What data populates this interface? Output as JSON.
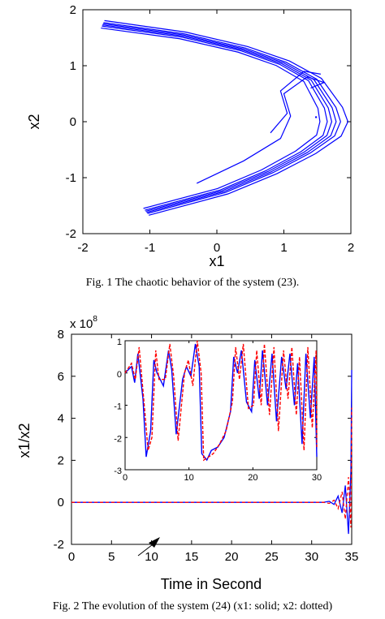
{
  "figure1": {
    "caption": "Fig. 1 The chaotic behavior of the system (23).",
    "chart_data": {
      "type": "scatter",
      "xlabel": "x1",
      "ylabel": "x2",
      "xlim": [
        -2,
        2
      ],
      "ylim": [
        -2,
        2
      ],
      "xticks": [
        "-2",
        "-1",
        "0",
        "1",
        "2"
      ],
      "yticks": [
        "-2",
        "-1",
        "0",
        "1",
        "2"
      ],
      "grid": false,
      "series_color": "#0000ff",
      "attractor_points": [
        [
          -1.7,
          1.75
        ],
        [
          -0.5,
          1.55
        ],
        [
          0.4,
          1.3
        ],
        [
          1.0,
          1.05
        ],
        [
          1.45,
          0.75
        ],
        [
          1.72,
          0.25
        ],
        [
          1.78,
          0.0
        ],
        [
          1.7,
          -0.25
        ],
        [
          1.35,
          -0.55
        ],
        [
          0.8,
          -0.9
        ],
        [
          0.1,
          -1.25
        ],
        [
          -1.05,
          -1.62
        ]
      ]
    }
  },
  "figure2": {
    "caption": "Fig. 2 The evolution of the system (24)  (x1: solid; x2: dotted)",
    "chart_data": {
      "type": "line",
      "xlabel": "Time in Second",
      "ylabel": "x1/x2",
      "xlim": [
        0,
        35
      ],
      "ylim": [
        -2,
        8
      ],
      "y_multiplier": "x 10",
      "y_exponent": "8",
      "xticks": [
        "0",
        "5",
        "10",
        "15",
        "20",
        "25",
        "30",
        "35"
      ],
      "yticks": [
        "-2",
        "0",
        "2",
        "4",
        "6",
        "8"
      ],
      "series": [
        {
          "style": "solid",
          "color": "#0000ff",
          "x": [
            0,
            31.5,
            32.2,
            32.8,
            33.3,
            33.8,
            34.2,
            34.6,
            34.9,
            35
          ],
          "y": [
            0,
            0,
            0.05,
            -0.1,
            0.3,
            -0.5,
            0.8,
            -1.5,
            1.5,
            6.3
          ]
        },
        {
          "style": "dotted",
          "color": "#ff0000",
          "x": [
            0,
            31.5,
            32.2,
            32.8,
            33.3,
            33.8,
            34.2,
            34.6,
            34.9,
            35
          ],
          "y": [
            0,
            0,
            -0.05,
            0.1,
            -0.3,
            0.5,
            -0.8,
            1.2,
            -1.2,
            4.5
          ]
        }
      ],
      "inset": {
        "xlim": [
          0,
          30
        ],
        "ylim": [
          -3,
          1
        ],
        "xticks": [
          "0",
          "10",
          "20",
          "30"
        ],
        "yticks": [
          "-3",
          "-2",
          "-1",
          "0",
          "1"
        ],
        "series": [
          {
            "style": "solid",
            "color": "#0000ff",
            "x": [
              0,
              1,
              1.5,
              2,
              2.8,
              3.3,
              4,
              4.5,
              5,
              6,
              6.8,
              7.3,
              8,
              9,
              9.6,
              10.3,
              11,
              11.6,
              12,
              12.8,
              13.5,
              14.5,
              15.5,
              16.5,
              17,
              17.6,
              18.2,
              19,
              19.8,
              20.3,
              21,
              21.5,
              22.3,
              23,
              23.7,
              24.5,
              25.2,
              25.8,
              26.5,
              27,
              27.7,
              28.3,
              29,
              29.6,
              30
            ],
            "y": [
              0,
              0.2,
              -0.3,
              0.6,
              -0.8,
              -2.6,
              -1.8,
              0.4,
              0,
              -0.4,
              0.7,
              0.1,
              -1.9,
              -0.2,
              0.2,
              -0.1,
              0.9,
              0.2,
              -2.5,
              -2.7,
              -2.4,
              -2.3,
              -2.0,
              -1.2,
              0.5,
              0.0,
              0.7,
              -0.9,
              -1.2,
              0.4,
              -0.8,
              0.7,
              -1.0,
              0.6,
              -1.5,
              0.5,
              -0.5,
              0.6,
              -1.0,
              0.3,
              -2.2,
              0.6,
              -1.4,
              0.5,
              -2.6
            ]
          },
          {
            "style": "dotted",
            "color": "#ff0000",
            "x": [
              0,
              1,
              1.6,
              2.2,
              3,
              3.6,
              4.2,
              4.8,
              5.3,
              6.3,
              7,
              7.6,
              8.3,
              9.3,
              9.9,
              10.6,
              11.3,
              11.9,
              12.3,
              13.1,
              13.8,
              14.8,
              15.8,
              16.8,
              17.3,
              17.9,
              18.5,
              19.3,
              20.1,
              20.6,
              21.3,
              21.8,
              22.6,
              23.3,
              24,
              24.8,
              25.5,
              26.1,
              26.8,
              27.3,
              28,
              28.6,
              29.3,
              29.9,
              30
            ],
            "y": [
              0,
              0.3,
              -0.2,
              0.8,
              -1.0,
              -2.4,
              -2.0,
              0.7,
              -0.2,
              -0.2,
              0.9,
              -0.1,
              -2.1,
              0.0,
              0.4,
              -0.4,
              1.0,
              0.0,
              -2.7,
              -2.6,
              -2.5,
              -2.2,
              -1.8,
              -0.9,
              0.8,
              -0.2,
              0.9,
              -1.1,
              -1.0,
              0.7,
              -1.0,
              0.9,
              -1.3,
              0.8,
              -1.8,
              0.7,
              -0.8,
              0.8,
              -1.3,
              0.5,
              -2.4,
              0.8,
              -1.7,
              0.7,
              -2.3
            ]
          }
        ]
      }
    }
  }
}
